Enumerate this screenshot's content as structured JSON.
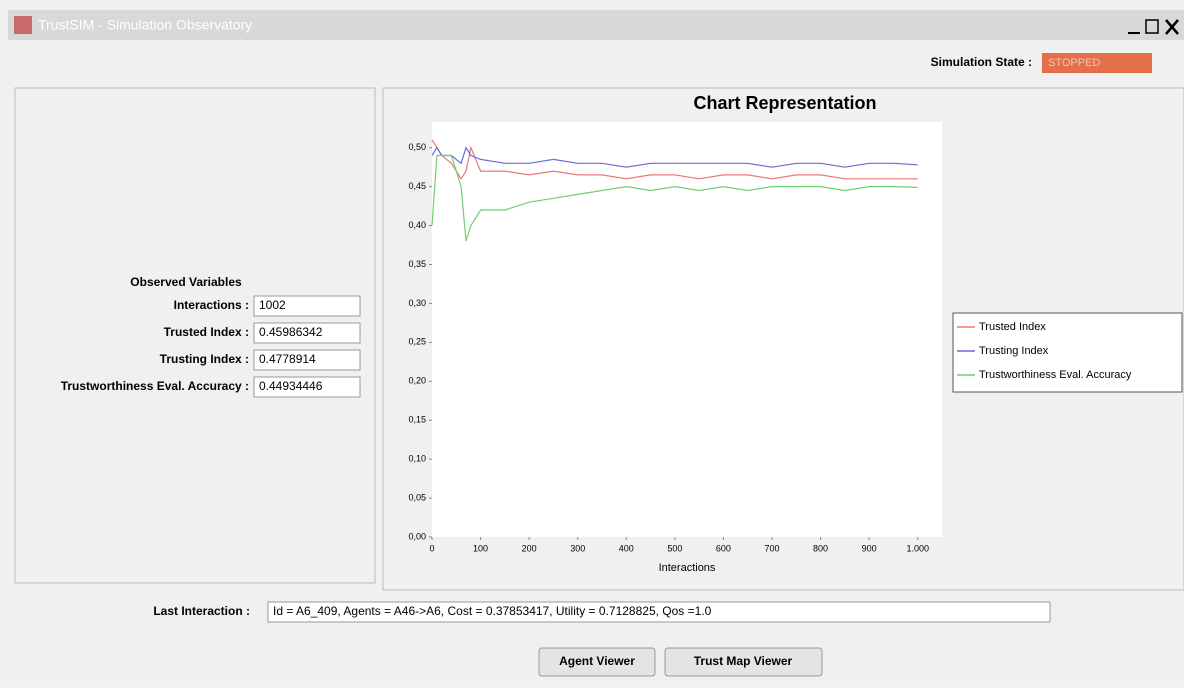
{
  "window": {
    "title": "TrustSIM - Simulation Observatory"
  },
  "simulation_state": {
    "label": "Simulation State :",
    "value": "STOPPED"
  },
  "observed_variables": {
    "title": "Observed Variables",
    "fields": [
      {
        "label": "Interactions :",
        "value": "1002"
      },
      {
        "label": "Trusted Index :",
        "value": "0.45986342"
      },
      {
        "label": "Trusting Index :",
        "value": "0.4778914"
      },
      {
        "label": "Trustworthiness Eval. Accuracy :",
        "value": "0.44934446"
      }
    ]
  },
  "chart_data": {
    "type": "line",
    "title": "Chart Representation",
    "x_label": "Interactions",
    "x": [
      0,
      10,
      20,
      40,
      60,
      70,
      80,
      100,
      150,
      200,
      250,
      300,
      350,
      400,
      450,
      500,
      550,
      600,
      650,
      700,
      750,
      800,
      850,
      900,
      950,
      1000
    ],
    "series": [
      {
        "name": "Trusted Index",
        "color": "#e87878",
        "values": [
          0.51,
          0.5,
          0.49,
          0.48,
          0.46,
          0.47,
          0.5,
          0.47,
          0.47,
          0.465,
          0.47,
          0.465,
          0.465,
          0.46,
          0.465,
          0.465,
          0.46,
          0.465,
          0.465,
          0.46,
          0.465,
          0.465,
          0.46,
          0.46,
          0.46,
          0.46
        ]
      },
      {
        "name": "Trusting Index",
        "color": "#6b6bd6",
        "values": [
          0.49,
          0.5,
          0.49,
          0.49,
          0.48,
          0.5,
          0.49,
          0.485,
          0.48,
          0.48,
          0.485,
          0.48,
          0.48,
          0.475,
          0.48,
          0.48,
          0.48,
          0.48,
          0.48,
          0.475,
          0.48,
          0.48,
          0.475,
          0.48,
          0.48,
          0.478
        ]
      },
      {
        "name": "Trustworthiness Eval. Accuracy",
        "color": "#6fd06f",
        "values": [
          0.4,
          0.49,
          0.49,
          0.49,
          0.45,
          0.38,
          0.4,
          0.42,
          0.42,
          0.43,
          0.435,
          0.44,
          0.445,
          0.45,
          0.445,
          0.45,
          0.445,
          0.45,
          0.445,
          0.45,
          0.45,
          0.45,
          0.445,
          0.45,
          0.45,
          0.449
        ]
      }
    ],
    "xlim": [
      0,
      1050
    ],
    "ylim": [
      0,
      0.533
    ],
    "xticks": [
      0,
      100,
      200,
      300,
      400,
      500,
      600,
      700,
      800,
      900,
      {
        "value": 1000,
        "label": "1.000"
      }
    ],
    "yticks": [
      {
        "value": 0,
        "label": "0,00"
      },
      {
        "value": 0.05,
        "label": "0,05"
      },
      {
        "value": 0.1,
        "label": "0,10"
      },
      {
        "value": 0.15,
        "label": "0,15"
      },
      {
        "value": 0.2,
        "label": "0,20"
      },
      {
        "value": 0.25,
        "label": "0,25"
      },
      {
        "value": 0.3,
        "label": "0,30"
      },
      {
        "value": 0.35,
        "label": "0,35"
      },
      {
        "value": 0.4,
        "label": "0,40"
      },
      {
        "value": 0.45,
        "label": "0,45"
      },
      {
        "value": 0.5,
        "label": "0,50"
      }
    ],
    "grid": false,
    "legend": "right"
  },
  "last_interaction": {
    "label": "Last Interaction :",
    "value": "Id = A6_409,  Agents = A46->A6,  Cost = 0.37853417,  Utility = 0.7128825,  Qos =1.0"
  },
  "buttons": [
    "Agent Viewer",
    "Trust Map Viewer"
  ]
}
